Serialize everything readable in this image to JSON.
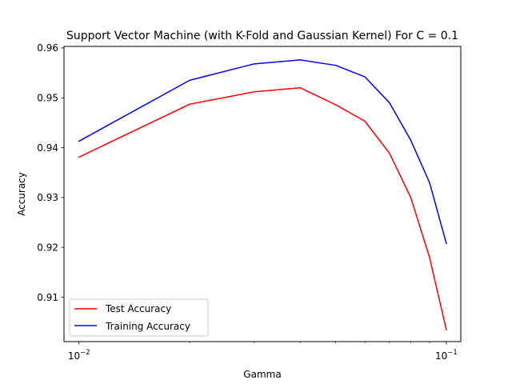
{
  "chart_data": {
    "type": "line",
    "title": "Support Vector Machine (with K-Fold and Gaussian Kernel) For C = 0.1",
    "xlabel": "Gamma",
    "ylabel": "Accuracy",
    "xscale": "log",
    "xlim": [
      0.0091,
      0.1095
    ],
    "ylim": [
      0.9011,
      0.9603
    ],
    "x": [
      0.01,
      0.02,
      0.03,
      0.04,
      0.05,
      0.06,
      0.07,
      0.08,
      0.09,
      0.1
    ],
    "xticks": [
      {
        "value": 0.01,
        "base": "10",
        "exp": "−2"
      },
      {
        "value": 0.1,
        "base": "10",
        "exp": "−1"
      }
    ],
    "yticks": [
      {
        "value": 0.91,
        "label": "0.91"
      },
      {
        "value": 0.92,
        "label": "0.92"
      },
      {
        "value": 0.93,
        "label": "0.93"
      },
      {
        "value": 0.94,
        "label": "0.94"
      },
      {
        "value": 0.95,
        "label": "0.95"
      },
      {
        "value": 0.96,
        "label": "0.96"
      }
    ],
    "series": [
      {
        "name": "Test Accuracy",
        "color": "#ff0000",
        "values": [
          0.9381,
          0.9487,
          0.9512,
          0.952,
          0.9486,
          0.9453,
          0.9389,
          0.93,
          0.918,
          0.9035
        ]
      },
      {
        "name": "Training Accuracy",
        "color": "#0000ff",
        "values": [
          0.9413,
          0.9535,
          0.9568,
          0.9576,
          0.9565,
          0.9542,
          0.949,
          0.9415,
          0.933,
          0.9208
        ]
      }
    ],
    "grid": false,
    "legend": "lower-left"
  }
}
